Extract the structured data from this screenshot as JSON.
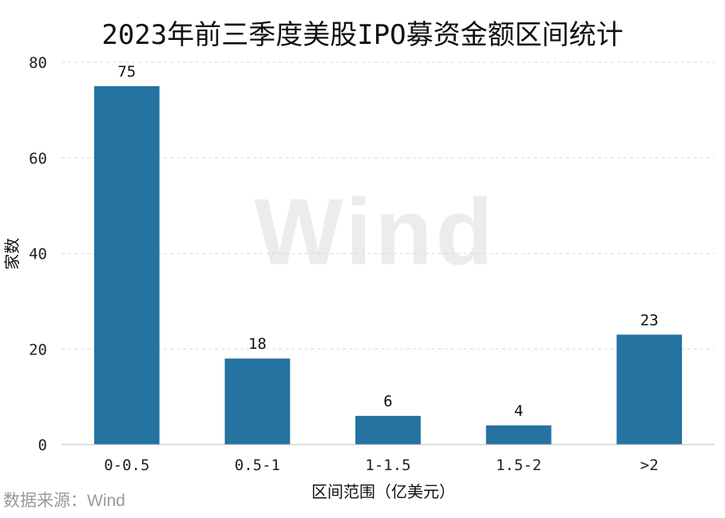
{
  "chart_data": {
    "type": "bar",
    "title": "2023年前三季度美股IPO募资金额区间统计",
    "xlabel": "区间范围（亿美元）",
    "ylabel": "家数",
    "categories": [
      "0-0.5",
      "0.5-1",
      "1-1.5",
      "1.5-2",
      ">2"
    ],
    "values": [
      75,
      18,
      6,
      4,
      23
    ],
    "ylim": [
      0,
      80
    ],
    "yticks": [
      0,
      20,
      40,
      60,
      80
    ],
    "grid": true,
    "bar_color": "#2473a0",
    "data_labels": [
      "75",
      "18",
      "6",
      "4",
      "23"
    ]
  },
  "source": "数据来源：Wind",
  "watermark": "Wind"
}
